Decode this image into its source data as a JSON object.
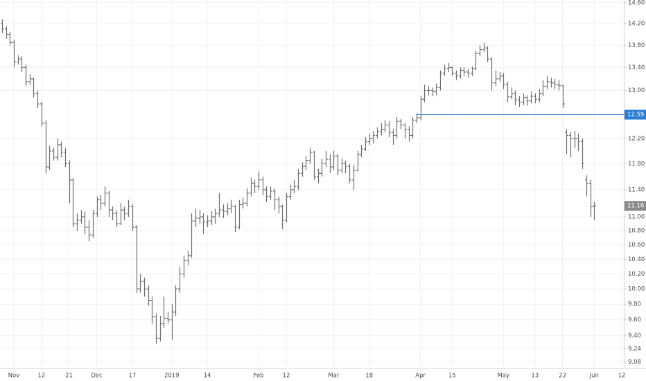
{
  "chart_data": {
    "type": "ohlc",
    "color": "#6e6e6e",
    "grid": true,
    "log_scale": true,
    "ylim": [
      9.01,
      14.65
    ],
    "yticks": [
      {
        "value": 9.08,
        "label": "9.08"
      },
      {
        "value": 9.24,
        "label": "9.24"
      },
      {
        "value": 9.4,
        "label": "9.40"
      },
      {
        "value": 9.6,
        "label": "9.60"
      },
      {
        "value": 9.8,
        "label": "9.80"
      },
      {
        "value": 10,
        "label": "10.00"
      },
      {
        "value": 10.2,
        "label": "10.20"
      },
      {
        "value": 10.4,
        "label": "10.40"
      },
      {
        "value": 10.6,
        "label": "10.60"
      },
      {
        "value": 10.8,
        "label": "10.80"
      },
      {
        "value": 11,
        "label": "11.00"
      },
      {
        "value": 11.4,
        "label": "11.40"
      },
      {
        "value": 11.8,
        "label": "11.80"
      },
      {
        "value": 12.2,
        "label": "12.20"
      },
      {
        "value": 13,
        "label": "13.00"
      },
      {
        "value": 13.4,
        "label": "13.40"
      },
      {
        "value": 13.8,
        "label": "13.80"
      },
      {
        "value": 14.2,
        "label": "14.20"
      },
      {
        "value": 14.6,
        "label": "14.60"
      }
    ],
    "horizontal_line": {
      "value": 12.59,
      "color": "#2a7fd4"
    },
    "last_price": 11.16,
    "categories": [
      null,
      null,
      null,
      "Nov",
      null,
      null,
      null,
      null,
      null,
      null,
      "12",
      null,
      null,
      null,
      null,
      null,
      null,
      "21",
      null,
      null,
      null,
      null,
      null,
      null,
      "Dec",
      null,
      null,
      null,
      null,
      null,
      null,
      null,
      null,
      "17",
      null,
      null,
      null,
      null,
      null,
      null,
      null,
      null,
      null,
      "2019",
      null,
      null,
      null,
      null,
      null,
      null,
      null,
      null,
      "14",
      null,
      null,
      null,
      null,
      null,
      null,
      null,
      null,
      null,
      null,
      null,
      null,
      "Feb",
      null,
      null,
      null,
      null,
      null,
      null,
      "12",
      null,
      null,
      null,
      null,
      null,
      null,
      null,
      null,
      null,
      null,
      null,
      "Mar",
      null,
      null,
      null,
      null,
      null,
      null,
      null,
      null,
      "18",
      null,
      null,
      null,
      null,
      null,
      null,
      null,
      null,
      null,
      null,
      null,
      null,
      "Apr",
      null,
      null,
      null,
      null,
      null,
      null,
      null,
      "15",
      null,
      null,
      null,
      null,
      null,
      null,
      null,
      null,
      null,
      null,
      null,
      null,
      "May",
      null,
      null,
      null,
      null,
      null,
      null,
      null,
      "13",
      null,
      null,
      null,
      null,
      null,
      null,
      "22",
      null,
      null,
      null,
      null,
      null,
      null,
      null,
      "Jun",
      null,
      null,
      null,
      null,
      null,
      null,
      "12"
    ],
    "bars": [
      [
        14.2,
        14.28,
        14.02,
        14.1
      ],
      [
        14.1,
        14.15,
        13.92,
        14.0
      ],
      [
        14.0,
        14.05,
        13.8,
        13.85
      ],
      [
        13.85,
        13.9,
        13.4,
        13.5
      ],
      [
        13.5,
        13.62,
        13.45,
        13.55
      ],
      [
        13.55,
        13.6,
        13.32,
        13.4
      ],
      [
        13.4,
        13.45,
        13.08,
        13.15
      ],
      [
        13.15,
        13.28,
        13.1,
        13.2
      ],
      [
        13.2,
        13.22,
        12.88,
        12.95
      ],
      [
        12.95,
        13.0,
        12.7,
        12.77
      ],
      [
        12.77,
        12.8,
        12.4,
        12.45
      ],
      [
        12.45,
        12.5,
        11.65,
        11.75
      ],
      [
        11.75,
        12.08,
        11.7,
        12.0
      ],
      [
        12.0,
        12.05,
        11.85,
        11.9
      ],
      [
        11.9,
        12.2,
        11.85,
        12.1
      ],
      [
        12.1,
        12.15,
        11.9,
        11.98
      ],
      [
        11.98,
        12.05,
        11.75,
        11.8
      ],
      [
        11.8,
        11.85,
        11.2,
        11.55
      ],
      [
        11.55,
        11.58,
        10.85,
        10.9
      ],
      [
        10.9,
        11.05,
        10.8,
        10.95
      ],
      [
        10.95,
        11.1,
        10.9,
        11.0
      ],
      [
        11.0,
        11.08,
        10.75,
        10.85
      ],
      [
        10.85,
        10.95,
        10.65,
        10.74
      ],
      [
        10.74,
        11.1,
        10.7,
        11.05
      ],
      [
        11.05,
        11.3,
        11.0,
        11.25
      ],
      [
        11.25,
        11.32,
        11.1,
        11.2
      ],
      [
        11.2,
        11.45,
        11.15,
        11.35
      ],
      [
        11.35,
        11.38,
        11.0,
        11.1
      ],
      [
        11.1,
        11.15,
        10.95,
        11.05
      ],
      [
        11.05,
        11.1,
        10.85,
        10.9
      ],
      [
        10.9,
        11.2,
        10.88,
        11.1
      ],
      [
        11.1,
        11.15,
        10.95,
        11.05
      ],
      [
        11.05,
        11.25,
        11.0,
        11.15
      ],
      [
        11.15,
        11.18,
        10.8,
        10.85
      ],
      [
        10.85,
        10.88,
        9.95,
        10.0
      ],
      [
        10.0,
        10.2,
        9.95,
        10.1
      ],
      [
        10.1,
        10.15,
        9.9,
        10.0
      ],
      [
        10.0,
        10.05,
        9.78,
        9.85
      ],
      [
        9.85,
        9.9,
        9.55,
        9.64
      ],
      [
        9.64,
        9.68,
        9.3,
        9.37
      ],
      [
        9.37,
        9.65,
        9.33,
        9.55
      ],
      [
        9.55,
        9.9,
        9.5,
        9.62
      ],
      [
        9.62,
        9.7,
        9.55,
        9.6
      ],
      [
        9.6,
        9.8,
        9.35,
        9.7
      ],
      [
        9.7,
        10.05,
        9.65,
        10.0
      ],
      [
        10.0,
        10.3,
        9.95,
        10.2
      ],
      [
        10.2,
        10.45,
        10.15,
        10.38
      ],
      [
        10.38,
        10.52,
        10.32,
        10.45
      ],
      [
        10.45,
        11.05,
        10.42,
        10.94
      ],
      [
        10.94,
        11.12,
        10.85,
        10.98
      ],
      [
        10.98,
        11.1,
        10.9,
        11.0
      ],
      [
        11.0,
        11.05,
        10.75,
        10.92
      ],
      [
        10.92,
        11.02,
        10.85,
        10.94
      ],
      [
        10.94,
        11.08,
        10.88,
        11.0
      ],
      [
        11.0,
        11.12,
        10.9,
        11.05
      ],
      [
        11.05,
        11.35,
        11.0,
        11.1
      ],
      [
        11.1,
        11.18,
        10.98,
        11.08
      ],
      [
        11.08,
        11.2,
        11.02,
        11.12
      ],
      [
        11.12,
        11.25,
        11.05,
        11.15
      ],
      [
        11.15,
        11.18,
        10.78,
        10.85
      ],
      [
        10.85,
        11.25,
        10.82,
        11.18
      ],
      [
        11.18,
        11.28,
        11.12,
        11.2
      ],
      [
        11.2,
        11.42,
        11.15,
        11.35
      ],
      [
        11.35,
        11.58,
        11.3,
        11.5
      ],
      [
        11.5,
        11.55,
        11.35,
        11.45
      ],
      [
        11.45,
        11.68,
        11.4,
        11.55
      ],
      [
        11.55,
        11.6,
        11.32,
        11.4
      ],
      [
        11.4,
        11.45,
        11.22,
        11.3
      ],
      [
        11.3,
        11.45,
        11.25,
        11.38
      ],
      [
        11.38,
        11.42,
        11.1,
        11.25
      ],
      [
        11.25,
        11.3,
        11.05,
        11.15
      ],
      [
        11.15,
        11.18,
        10.82,
        10.95
      ],
      [
        10.95,
        11.35,
        10.92,
        11.3
      ],
      [
        11.3,
        11.48,
        11.25,
        11.4
      ],
      [
        11.4,
        11.55,
        11.35,
        11.45
      ],
      [
        11.45,
        11.72,
        11.4,
        11.65
      ],
      [
        11.65,
        11.82,
        11.6,
        11.76
      ],
      [
        11.76,
        11.92,
        11.7,
        11.85
      ],
      [
        11.85,
        12.05,
        11.8,
        11.98
      ],
      [
        11.98,
        12.0,
        11.55,
        11.6
      ],
      [
        11.6,
        11.72,
        11.5,
        11.65
      ],
      [
        11.65,
        11.88,
        11.6,
        11.8
      ],
      [
        11.8,
        12.0,
        11.75,
        11.87
      ],
      [
        11.87,
        11.95,
        11.65,
        11.75
      ],
      [
        11.75,
        12.0,
        11.7,
        11.92
      ],
      [
        11.92,
        11.95,
        11.62,
        11.7
      ],
      [
        11.7,
        11.88,
        11.65,
        11.8
      ],
      [
        11.8,
        11.85,
        11.65,
        11.76
      ],
      [
        11.76,
        11.8,
        11.5,
        11.55
      ],
      [
        11.55,
        11.78,
        11.4,
        11.7
      ],
      [
        11.7,
        12.0,
        11.68,
        11.95
      ],
      [
        11.95,
        12.1,
        11.9,
        12.03
      ],
      [
        12.03,
        12.22,
        12.0,
        12.15
      ],
      [
        12.15,
        12.28,
        12.1,
        12.2
      ],
      [
        12.2,
        12.32,
        12.12,
        12.25
      ],
      [
        12.25,
        12.38,
        12.2,
        12.31
      ],
      [
        12.31,
        12.45,
        12.25,
        12.35
      ],
      [
        12.35,
        12.5,
        12.3,
        12.42
      ],
      [
        12.42,
        12.48,
        12.22,
        12.3
      ],
      [
        12.3,
        12.35,
        12.1,
        12.25
      ],
      [
        12.25,
        12.55,
        12.2,
        12.48
      ],
      [
        12.48,
        12.52,
        12.35,
        12.42
      ],
      [
        12.42,
        12.45,
        12.2,
        12.35
      ],
      [
        12.35,
        12.4,
        12.15,
        12.25
      ],
      [
        12.25,
        12.55,
        12.2,
        12.5
      ],
      [
        12.5,
        12.62,
        12.45,
        12.54
      ],
      [
        12.54,
        12.9,
        12.5,
        12.85
      ],
      [
        12.85,
        13.1,
        12.8,
        13.0
      ],
      [
        13.0,
        13.08,
        12.92,
        13.0
      ],
      [
        13.0,
        13.05,
        12.9,
        12.98
      ],
      [
        12.98,
        13.12,
        12.92,
        13.05
      ],
      [
        13.05,
        13.35,
        13.0,
        13.3
      ],
      [
        13.3,
        13.45,
        13.25,
        13.38
      ],
      [
        13.38,
        13.48,
        13.32,
        13.4
      ],
      [
        13.4,
        13.42,
        13.25,
        13.3
      ],
      [
        13.3,
        13.35,
        13.18,
        13.25
      ],
      [
        13.25,
        13.4,
        13.2,
        13.35
      ],
      [
        13.35,
        13.4,
        13.25,
        13.32
      ],
      [
        13.32,
        13.38,
        13.22,
        13.3
      ],
      [
        13.3,
        13.42,
        13.25,
        13.38
      ],
      [
        13.38,
        13.7,
        13.35,
        13.65
      ],
      [
        13.65,
        13.8,
        13.6,
        13.72
      ],
      [
        13.72,
        13.85,
        13.68,
        13.75
      ],
      [
        13.75,
        13.78,
        13.5,
        13.55
      ],
      [
        13.55,
        13.58,
        13.0,
        13.13
      ],
      [
        13.13,
        13.35,
        13.08,
        13.2
      ],
      [
        13.2,
        13.32,
        13.15,
        13.25
      ],
      [
        13.25,
        13.3,
        13.02,
        13.1
      ],
      [
        13.1,
        13.15,
        12.8,
        12.89
      ],
      [
        12.89,
        13.05,
        12.85,
        12.95
      ],
      [
        12.95,
        13.0,
        12.75,
        12.84
      ],
      [
        12.84,
        12.9,
        12.72,
        12.8
      ],
      [
        12.8,
        12.95,
        12.75,
        12.88
      ],
      [
        12.88,
        12.92,
        12.74,
        12.82
      ],
      [
        12.82,
        12.98,
        12.78,
        12.9
      ],
      [
        12.9,
        12.95,
        12.78,
        12.85
      ],
      [
        12.85,
        13.02,
        12.8,
        12.95
      ],
      [
        12.95,
        13.18,
        12.9,
        13.07
      ],
      [
        13.07,
        13.25,
        13.02,
        13.15
      ],
      [
        13.15,
        13.22,
        13.05,
        13.13
      ],
      [
        13.13,
        13.2,
        13.02,
        13.1
      ],
      [
        13.1,
        13.18,
        13.0,
        13.08
      ],
      [
        13.08,
        13.1,
        12.7,
        12.77
      ],
      [
        12.3,
        12.35,
        11.95,
        12.25
      ],
      [
        12.25,
        12.3,
        11.9,
        12.2
      ],
      [
        12.2,
        12.32,
        12.05,
        12.2
      ],
      [
        12.2,
        12.28,
        12.0,
        12.15
      ],
      [
        12.15,
        12.2,
        11.72,
        11.8
      ],
      [
        11.55,
        11.62,
        11.3,
        11.5
      ],
      [
        11.5,
        11.55,
        11.0,
        11.15
      ],
      [
        11.15,
        11.22,
        10.95,
        11.16
      ],
      null,
      null,
      null,
      null,
      null,
      null,
      null
    ]
  }
}
